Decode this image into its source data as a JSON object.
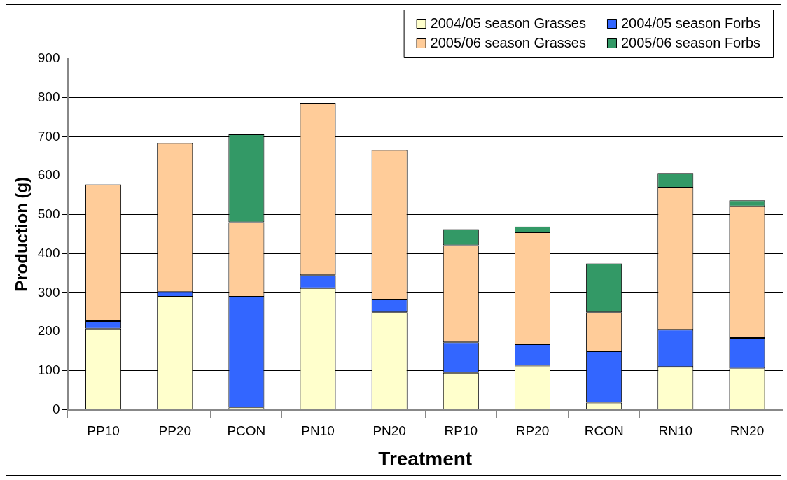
{
  "chart_data": {
    "type": "bar",
    "xlabel": "Treatment",
    "ylabel": "Production (g)",
    "categories": [
      "PP10",
      "PP20",
      "PCON",
      "PN10",
      "PN20",
      "RP10",
      "RP20",
      "RCON",
      "RN10",
      "RN20"
    ],
    "stacked": true,
    "ylim": [
      0,
      900
    ],
    "yticks": [
      0,
      100,
      200,
      300,
      400,
      500,
      600,
      700,
      800,
      900
    ],
    "grid": "y",
    "legend": "top right",
    "series": [
      {
        "name": "2004/05 season Grasses",
        "color": "#ffffcc",
        "values": [
          208,
          290,
          6,
          312,
          250,
          95,
          113,
          18,
          110,
          106
        ]
      },
      {
        "name": "2004/05 season Forbs",
        "color": "#3366ff",
        "values": [
          19,
          12,
          284,
          33,
          33,
          78,
          55,
          132,
          95,
          78
        ]
      },
      {
        "name": "2005/06 season Grasses",
        "color": "#ffcc99",
        "values": [
          351,
          382,
          191,
          442,
          383,
          249,
          287,
          100,
          365,
          338
        ]
      },
      {
        "name": "2005/06 season Forbs",
        "color": "#339966",
        "values": [
          0,
          0,
          225,
          0,
          0,
          41,
          15,
          125,
          37,
          15
        ]
      }
    ]
  }
}
